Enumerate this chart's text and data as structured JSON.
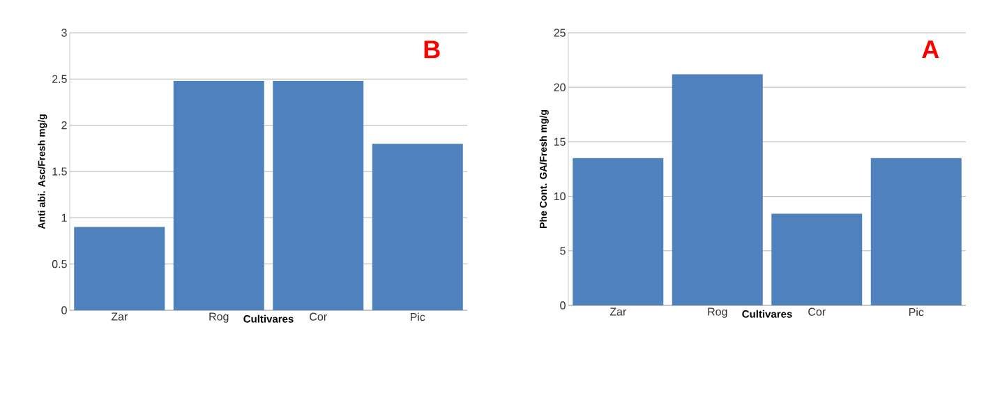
{
  "chart_data": [
    {
      "type": "bar",
      "xlabel": "Cultivares",
      "ylabel": "Anti abi. Asc/Fresh mg/g",
      "categories": [
        "Zar",
        "Rog",
        "Cor",
        "Pic"
      ],
      "values": [
        0.9,
        2.48,
        2.48,
        1.8
      ],
      "color": "#4f81bd",
      "ylim": [
        0,
        3
      ],
      "yticks": [
        0,
        0.5,
        1,
        1.5,
        2,
        2.5,
        3
      ],
      "grid": "y",
      "annotations": [
        {
          "text": "B"
        }
      ]
    },
    {
      "type": "bar",
      "xlabel": "Cultivares",
      "ylabel": "Phe Cont. GA/Fresh mg/g",
      "categories": [
        "Zar",
        "Rog",
        "Cor",
        "Pic"
      ],
      "values": [
        13.5,
        21.2,
        8.4,
        13.5
      ],
      "color": "#4f81bd",
      "ylim": [
        0,
        25
      ],
      "yticks": [
        0,
        5,
        10,
        15,
        20,
        25
      ],
      "grid": "y",
      "annotations": [
        {
          "text": "A"
        }
      ]
    }
  ]
}
